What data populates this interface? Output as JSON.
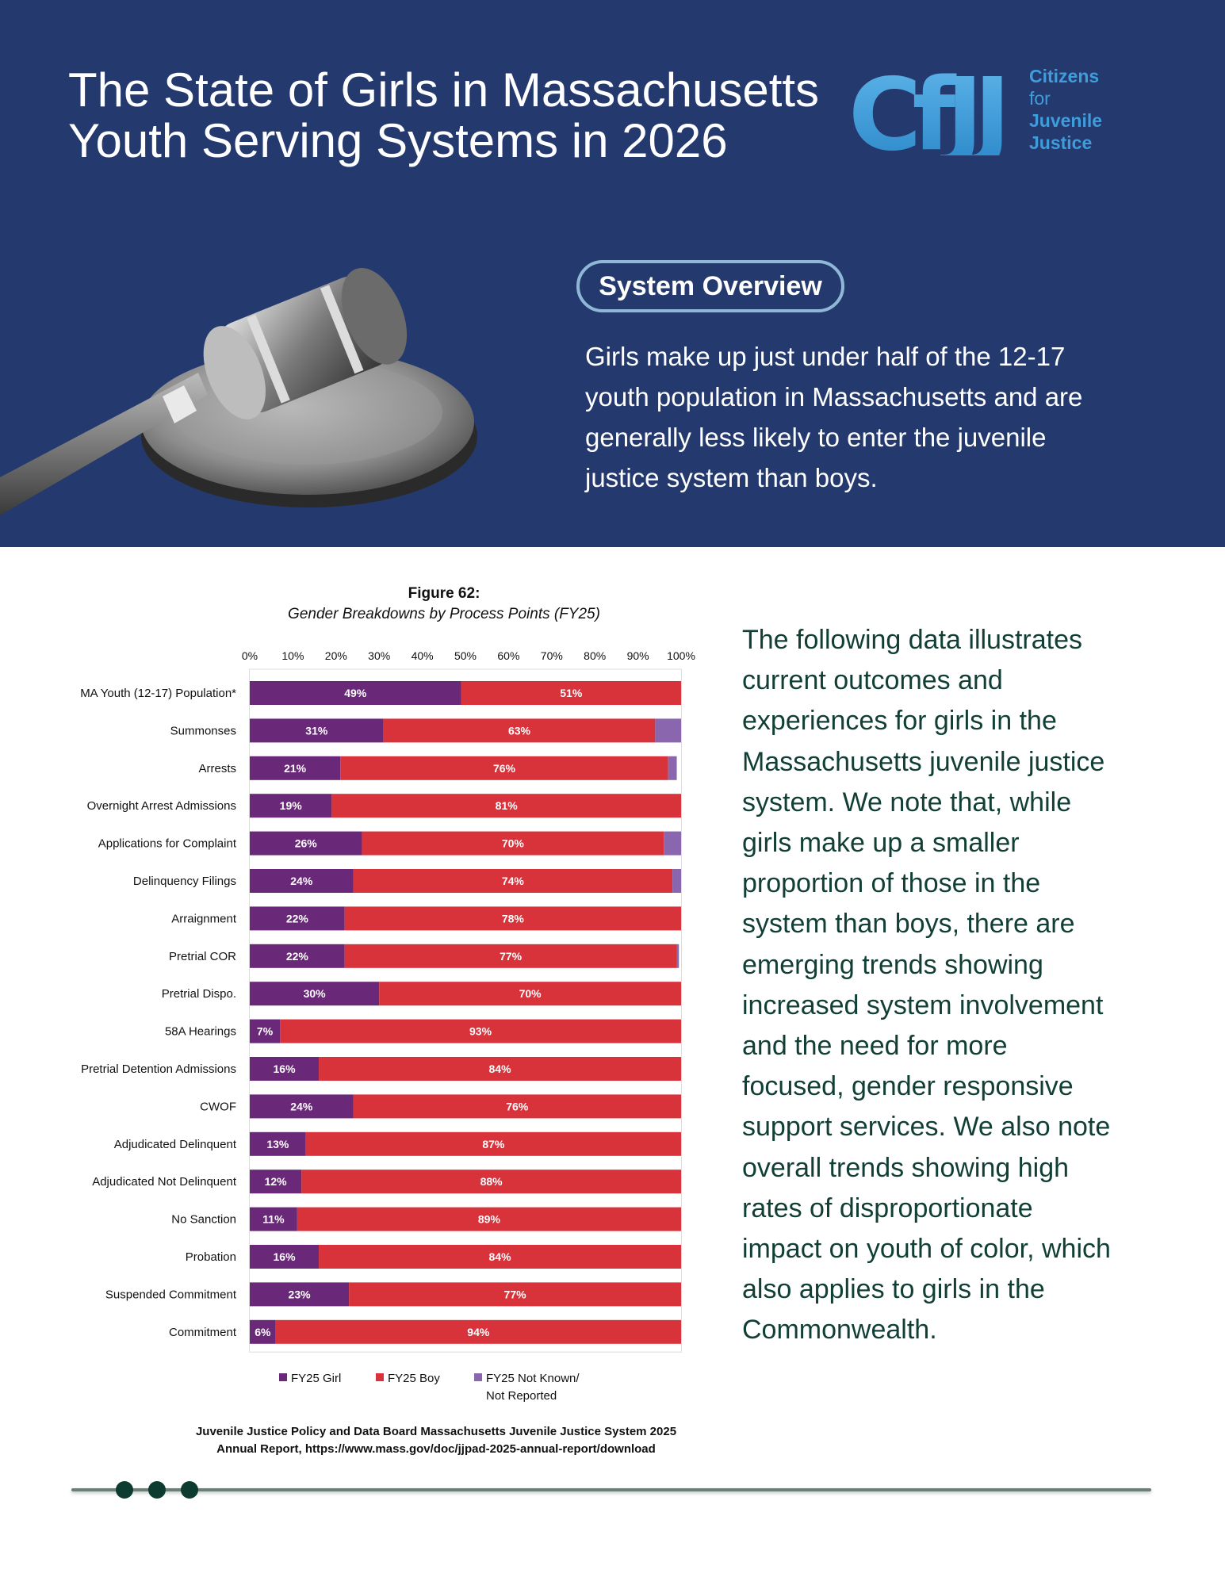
{
  "header": {
    "title": "The State of Girls in Massachusetts Youth Serving Systems in 2026",
    "logo": {
      "mark": "CfJJ",
      "lines": [
        "Citizens",
        "for",
        "Juvenile",
        "Justice"
      ]
    },
    "pill_label": "System Overview",
    "overview_text": "Girls make up just under half of the 12-17 youth population in Massachusetts and are generally less likely to enter the juvenile justice system than boys."
  },
  "figure": {
    "title": "Figure 62:",
    "subtitle": "Gender Breakdowns by Process Points (FY25)"
  },
  "chart_data": {
    "type": "bar",
    "orientation": "horizontal",
    "stacked": true,
    "title": "Figure 62:",
    "subtitle": "Gender Breakdowns by Process Points (FY25)",
    "xlim": [
      0,
      100
    ],
    "x_ticks": [
      "0%",
      "10%",
      "20%",
      "30%",
      "40%",
      "50%",
      "60%",
      "70%",
      "80%",
      "90%",
      "100%"
    ],
    "x_axis_position": "top",
    "grid": false,
    "legend_position": "bottom",
    "categories": [
      "MA Youth (12-17) Population*",
      "Summonses",
      "Arrests",
      "Overnight Arrest Admissions",
      "Applications for Complaint",
      "Delinquency Filings",
      "Arraignment",
      "Pretrial COR",
      "Pretrial Dispo.",
      "58A Hearings",
      "Pretrial Detention Admissions",
      "CWOF",
      "Adjudicated Delinquent",
      "Adjudicated Not Delinquent",
      "No Sanction",
      "Probation",
      "Suspended Commitment",
      "Commitment"
    ],
    "series": [
      {
        "name": "FY25 Girl",
        "color": "#6a2878",
        "values": [
          49,
          31,
          21,
          19,
          26,
          24,
          22,
          22,
          30,
          7,
          16,
          24,
          13,
          12,
          11,
          16,
          23,
          6
        ]
      },
      {
        "name": "FY25 Boy",
        "color": "#d8323b",
        "values": [
          51,
          63,
          76,
          81,
          70,
          74,
          78,
          77,
          70,
          93,
          84,
          76,
          87,
          88,
          89,
          84,
          77,
          94
        ]
      },
      {
        "name": "FY25 Not Known/ Not Reported",
        "color": "#8a66ae",
        "values": [
          0,
          6,
          2,
          0,
          4,
          2,
          0,
          0.5,
          0,
          0,
          0,
          0,
          0,
          0,
          0,
          0,
          0,
          0
        ]
      }
    ],
    "data_labels": {
      "girl": [
        "49%",
        "31%",
        "21%",
        "19%",
        "26%",
        "24%",
        "22%",
        "22%",
        "30%",
        "7%",
        "16%",
        "24%",
        "13%",
        "12%",
        "11%",
        "16%",
        "23%",
        "6%"
      ],
      "boy": [
        "51%",
        "63%",
        "76%",
        "81%",
        "70%",
        "74%",
        "78%",
        "77%",
        "70%",
        "93%",
        "84%",
        "76%",
        "87%",
        "88%",
        "89%",
        "84%",
        "77%",
        "94%"
      ]
    }
  },
  "legend": {
    "girl": "FY25 Girl",
    "boy": "FY25 Boy",
    "unknown_line1": "FY25 Not Known/",
    "unknown_line2": "Not Reported"
  },
  "source": {
    "line1": "Juvenile Justice Policy and Data Board Massachusetts Juvenile Justice System 2025",
    "line2": "Annual Report, https://www.mass.gov/doc/jjpad-2025-annual-report/download"
  },
  "body_text": "The following data illustrates current outcomes and experiences for girls in the Massachusetts juvenile justice system. We note that, while girls make up a smaller proportion of those in the system than boys, there are emerging trends showing increased system involvement and the need for more focused, gender responsive support services. We also note overall trends showing high rates of disproportionate impact on youth of color, which also applies to girls in the Commonwealth.",
  "colors": {
    "header_bg": "#24396e",
    "logo_blue": "#3f9ddb",
    "body_text": "#113f35",
    "footer_dot": "#0e3b2f"
  }
}
